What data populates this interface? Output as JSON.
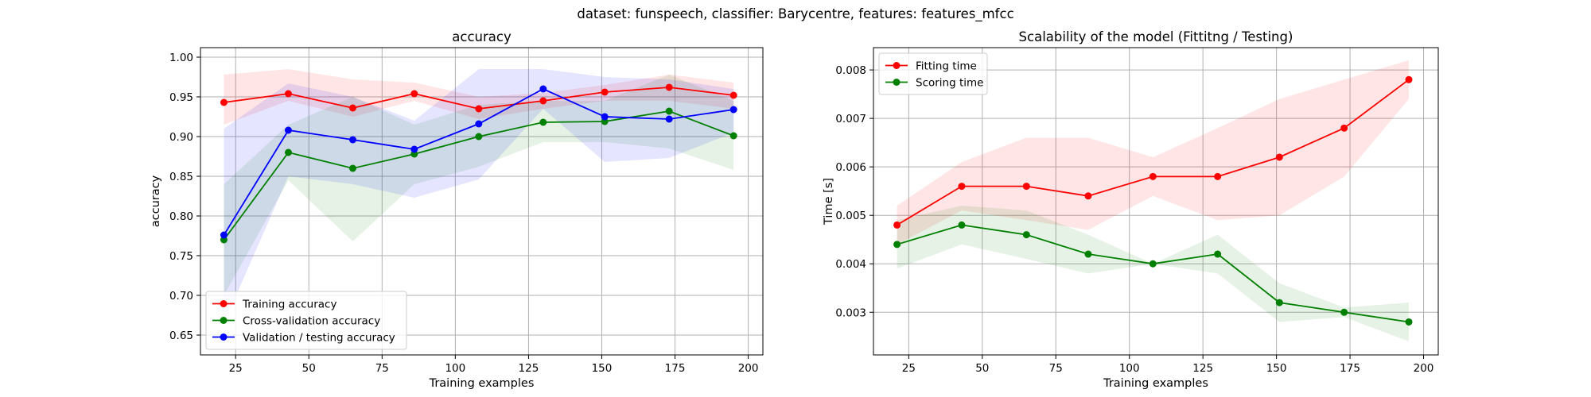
{
  "figure": {
    "suptitle": "dataset: funspeech, classifier: Barycentre, features: features_mfcc"
  },
  "chart_data": [
    {
      "type": "line",
      "title": "accuracy",
      "xlabel": "Training examples",
      "ylabel": "accuracy",
      "xlim": [
        13,
        205
      ],
      "ylim": [
        0.625,
        1.012
      ],
      "xticks": [
        25,
        50,
        75,
        100,
        125,
        150,
        175,
        200
      ],
      "yticks": [
        0.65,
        0.7,
        0.75,
        0.8,
        0.85,
        0.9,
        0.95,
        1.0
      ],
      "ytick_labels": [
        "0.65",
        "0.70",
        "0.75",
        "0.80",
        "0.85",
        "0.90",
        "0.95",
        "1.00"
      ],
      "grid": true,
      "legend_position": "lower-left",
      "x": [
        21,
        43,
        65,
        86,
        108,
        130,
        151,
        173,
        195
      ],
      "series": [
        {
          "name": "Training accuracy",
          "color": "#ff0000",
          "values": [
            0.943,
            0.954,
            0.936,
            0.954,
            0.935,
            0.945,
            0.956,
            0.962,
            0.952
          ],
          "band_low": [
            0.915,
            0.945,
            0.925,
            0.945,
            0.922,
            0.935,
            0.945,
            0.945,
            0.935
          ],
          "band_high": [
            0.978,
            0.985,
            0.972,
            0.968,
            0.95,
            0.955,
            0.965,
            0.978,
            0.968
          ]
        },
        {
          "name": "Cross-validation accuracy",
          "color": "#008000",
          "values": [
            0.77,
            0.88,
            0.86,
            0.878,
            0.9,
            0.918,
            0.919,
            0.932,
            0.901
          ],
          "band_low": [
            0.7,
            0.845,
            0.768,
            0.84,
            0.862,
            0.893,
            0.893,
            0.885,
            0.858
          ],
          "band_high": [
            0.84,
            0.915,
            0.95,
            0.915,
            0.94,
            0.945,
            0.945,
            0.978,
            0.945
          ]
        },
        {
          "name": "Validation / testing accuracy",
          "color": "#0000ff",
          "values": [
            0.776,
            0.908,
            0.896,
            0.884,
            0.916,
            0.96,
            0.925,
            0.922,
            0.934
          ],
          "band_low": [
            0.665,
            0.85,
            0.84,
            0.823,
            0.846,
            0.935,
            0.868,
            0.873,
            0.905
          ],
          "band_high": [
            0.91,
            0.967,
            0.95,
            0.92,
            0.985,
            0.985,
            0.975,
            0.972,
            0.96
          ]
        }
      ]
    },
    {
      "type": "line",
      "title": "Scalability of the model (Fittitng / Testing)",
      "xlabel": "Training examples",
      "ylabel": "Time [s]",
      "xlim": [
        13,
        205
      ],
      "ylim": [
        0.00212,
        0.00846
      ],
      "xticks": [
        25,
        50,
        75,
        100,
        125,
        150,
        175,
        200
      ],
      "yticks": [
        0.003,
        0.004,
        0.005,
        0.006,
        0.007,
        0.008
      ],
      "ytick_labels": [
        "0.003",
        "0.004",
        "0.005",
        "0.006",
        "0.007",
        "0.008"
      ],
      "grid": true,
      "legend_position": "upper-left",
      "x": [
        21,
        43,
        65,
        86,
        108,
        130,
        151,
        173,
        195
      ],
      "series": [
        {
          "name": "Fitting time",
          "color": "#ff0000",
          "values": [
            0.0048,
            0.0056,
            0.0056,
            0.0054,
            0.0058,
            0.0058,
            0.0062,
            0.0068,
            0.0078
          ],
          "band_low": [
            0.0044,
            0.0051,
            0.0049,
            0.0047,
            0.0054,
            0.0049,
            0.005,
            0.0058,
            0.0074
          ],
          "band_high": [
            0.0052,
            0.0061,
            0.0066,
            0.0066,
            0.0062,
            0.0068,
            0.0074,
            0.0078,
            0.0082
          ]
        },
        {
          "name": "Scoring time",
          "color": "#008000",
          "values": [
            0.0044,
            0.0048,
            0.0046,
            0.0042,
            0.004,
            0.0042,
            0.0032,
            0.003,
            0.0028
          ],
          "band_low": [
            0.0039,
            0.0044,
            0.0041,
            0.0038,
            0.004,
            0.0038,
            0.0028,
            0.0029,
            0.0024
          ],
          "band_high": [
            0.0049,
            0.0052,
            0.0051,
            0.0046,
            0.004,
            0.0046,
            0.0036,
            0.0031,
            0.0032
          ]
        }
      ]
    }
  ]
}
